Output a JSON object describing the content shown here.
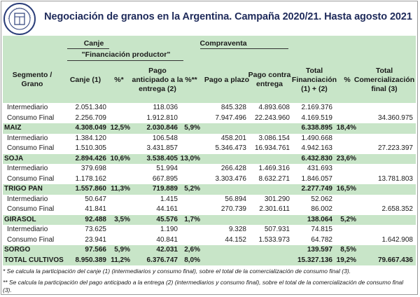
{
  "logo": {
    "name": "bolsa-de-comercio-seal",
    "text": "BOLSA DE COMERCIO DE ROSARIO"
  },
  "title": "Negociación de granos en la Argentina. Campaña 2020/21. Hasta agosto 2021",
  "header": {
    "canje_group": "Canje",
    "financiacion_group": "\"Financiación productor\"",
    "compraventa_group": "Compraventa",
    "col_segmento": "Segmento / Grano",
    "col_canje": "Canje (1)",
    "col_pct1": "%*",
    "col_pago_anticipado": "Pago anticipado a la entrega (2)",
    "col_pct2": "%**",
    "col_pago_plazo": "Pago a plazo",
    "col_pago_contra": "Pago contra entrega",
    "col_total_fin": "Total Financiación (1) + (2)",
    "col_pct3": "%",
    "col_total_com": "Total Comercialización final (3)"
  },
  "rows": [
    {
      "type": "sub",
      "seg": "Intermediario",
      "canje": "2.051.340",
      "pct1": "",
      "anticipado": "118.036",
      "pct2": "",
      "plazo": "845.328",
      "contra": "4.893.608",
      "totfin": "2.169.376",
      "pct3": "",
      "totcom": ""
    },
    {
      "type": "sub",
      "seg": "Consumo Final",
      "canje": "2.256.709",
      "pct1": "",
      "anticipado": "1.912.810",
      "pct2": "",
      "plazo": "7.947.496",
      "contra": "22.243.960",
      "totfin": "4.169.519",
      "pct3": "",
      "totcom": "34.360.975"
    },
    {
      "type": "total",
      "seg": "MAIZ",
      "canje": "4.308.049",
      "pct1": "12,5%",
      "anticipado": "2.030.846",
      "pct2": "5,9%",
      "plazo": "",
      "contra": "",
      "totfin": "6.338.895",
      "pct3": "18,4%",
      "totcom": ""
    },
    {
      "type": "sub",
      "seg": "Intermediario",
      "canje": "1.384.120",
      "pct1": "",
      "anticipado": "106.548",
      "pct2": "",
      "plazo": "458.201",
      "contra": "3.086.154",
      "totfin": "1.490.668",
      "pct3": "",
      "totcom": ""
    },
    {
      "type": "sub",
      "seg": "Consumo Final",
      "canje": "1.510.305",
      "pct1": "",
      "anticipado": "3.431.857",
      "pct2": "",
      "plazo": "5.346.473",
      "contra": "16.934.761",
      "totfin": "4.942.163",
      "pct3": "",
      "totcom": "27.223.397"
    },
    {
      "type": "total",
      "seg": "SOJA",
      "canje": "2.894.426",
      "pct1": "10,6%",
      "anticipado": "3.538.405",
      "pct2": "13,0%",
      "plazo": "",
      "contra": "",
      "totfin": "6.432.830",
      "pct3": "23,6%",
      "totcom": ""
    },
    {
      "type": "sub",
      "seg": "Intermediario",
      "canje": "379.698",
      "pct1": "",
      "anticipado": "51.994",
      "pct2": "",
      "plazo": "266.428",
      "contra": "1.469.316",
      "totfin": "431.693",
      "pct3": "",
      "totcom": ""
    },
    {
      "type": "sub",
      "seg": "Consumo Final",
      "canje": "1.178.162",
      "pct1": "",
      "anticipado": "667.895",
      "pct2": "",
      "plazo": "3.303.476",
      "contra": "8.632.271",
      "totfin": "1.846.057",
      "pct3": "",
      "totcom": "13.781.803"
    },
    {
      "type": "total",
      "seg": "TRIGO PAN",
      "canje": "1.557.860",
      "pct1": "11,3%",
      "anticipado": "719.889",
      "pct2": "5,2%",
      "plazo": "",
      "contra": "",
      "totfin": "2.277.749",
      "pct3": "16,5%",
      "totcom": ""
    },
    {
      "type": "sub",
      "seg": "Intermediario",
      "canje": "50.647",
      "pct1": "",
      "anticipado": "1.415",
      "pct2": "",
      "plazo": "56.894",
      "contra": "301.290",
      "totfin": "52.062",
      "pct3": "",
      "totcom": ""
    },
    {
      "type": "sub",
      "seg": "Consumo Final",
      "canje": "41.841",
      "pct1": "",
      "anticipado": "44.161",
      "pct2": "",
      "plazo": "270.739",
      "contra": "2.301.611",
      "totfin": "86.002",
      "pct3": "",
      "totcom": "2.658.352"
    },
    {
      "type": "total",
      "seg": "GIRASOL",
      "canje": "92.488",
      "pct1": "3,5%",
      "anticipado": "45.576",
      "pct2": "1,7%",
      "plazo": "",
      "contra": "",
      "totfin": "138.064",
      "pct3": "5,2%",
      "totcom": ""
    },
    {
      "type": "sub",
      "seg": "Intermediario",
      "canje": "73.625",
      "pct1": "",
      "anticipado": "1.190",
      "pct2": "",
      "plazo": "9.328",
      "contra": "507.931",
      "totfin": "74.815",
      "pct3": "",
      "totcom": ""
    },
    {
      "type": "sub",
      "seg": "Consumo Final",
      "canje": "23.941",
      "pct1": "",
      "anticipado": "40.841",
      "pct2": "",
      "plazo": "44.152",
      "contra": "1.533.973",
      "totfin": "64.782",
      "pct3": "",
      "totcom": "1.642.908"
    },
    {
      "type": "total",
      "seg": "SORGO",
      "canje": "97.566",
      "pct1": "5,9%",
      "anticipado": "42.031",
      "pct2": "2,6%",
      "plazo": "",
      "contra": "",
      "totfin": "139.597",
      "pct3": "8,5%",
      "totcom": ""
    },
    {
      "type": "total",
      "seg": "TOTAL CULTIVOS",
      "canje": "8.950.389",
      "pct1": "11,2%",
      "anticipado": "6.376.747",
      "pct2": "8,0%",
      "plazo": "",
      "contra": "",
      "totfin": "15.327.136",
      "pct3": "19,2%",
      "totcom": "79.667.436"
    }
  ],
  "notes": {
    "note1": "* Se calcula la participación del canje (1) (intermediarios y consumo final), sobre el total de la comercialización de consumo final (3).",
    "note2": "** Se calcula la participación del pago anticipado a la entrega (2) (intermediarios y consumo final), sobre el total de la comercialización de consumo final (3)."
  }
}
